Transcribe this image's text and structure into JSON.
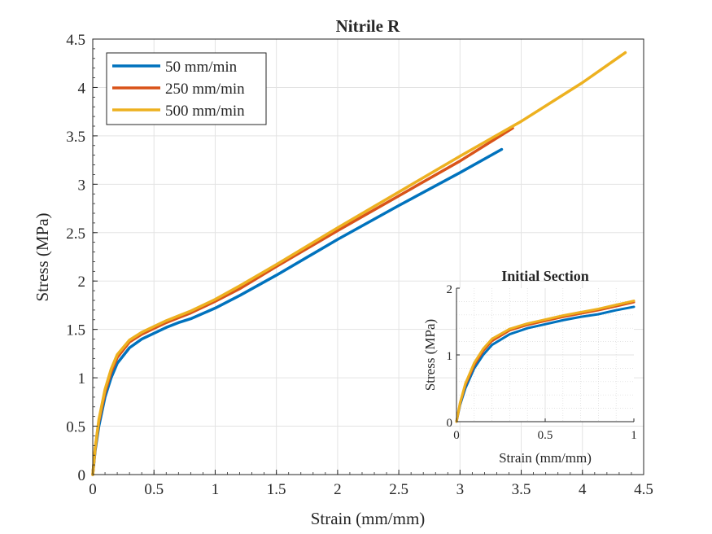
{
  "chart_data": [
    {
      "type": "line",
      "title": "Nitrile R",
      "xlabel": "Strain (mm/mm)",
      "ylabel": "Stress (MPa)",
      "xlim": [
        0,
        4.5
      ],
      "ylim": [
        0,
        4.5
      ],
      "xticks": [
        "0",
        "0.5",
        "1",
        "1.5",
        "2",
        "2.5",
        "3",
        "3.5",
        "4",
        "4.5"
      ],
      "yticks": [
        "0",
        "0.5",
        "1",
        "1.5",
        "2",
        "2.5",
        "3",
        "3.5",
        "4",
        "4.5"
      ],
      "grid": true,
      "minor_ticks": true,
      "legend_position": "top-left",
      "series": [
        {
          "name": "50 mm/min",
          "color": "#0072BD",
          "x": [
            0,
            0.02,
            0.05,
            0.1,
            0.15,
            0.2,
            0.3,
            0.4,
            0.5,
            0.6,
            0.7,
            0.8,
            1.0,
            1.2,
            1.5,
            2.0,
            2.5,
            3.0,
            3.34
          ],
          "y": [
            0,
            0.25,
            0.5,
            0.8,
            1.0,
            1.15,
            1.31,
            1.4,
            1.46,
            1.52,
            1.57,
            1.61,
            1.72,
            1.85,
            2.06,
            2.43,
            2.78,
            3.12,
            3.36
          ]
        },
        {
          "name": "250 mm/min",
          "color": "#D95319",
          "x": [
            0,
            0.02,
            0.05,
            0.1,
            0.15,
            0.2,
            0.3,
            0.4,
            0.5,
            0.6,
            0.7,
            0.8,
            1.0,
            1.2,
            1.5,
            2.0,
            2.5,
            3.0,
            3.43
          ],
          "y": [
            0,
            0.27,
            0.55,
            0.85,
            1.06,
            1.21,
            1.37,
            1.45,
            1.51,
            1.57,
            1.62,
            1.67,
            1.79,
            1.92,
            2.15,
            2.52,
            2.88,
            3.24,
            3.58
          ]
        },
        {
          "name": "500 mm/min",
          "color": "#EDB120",
          "x": [
            0,
            0.02,
            0.05,
            0.1,
            0.15,
            0.2,
            0.3,
            0.4,
            0.5,
            0.6,
            0.7,
            0.8,
            1.0,
            1.2,
            1.5,
            2.0,
            2.5,
            3.0,
            3.5,
            4.0,
            4.35
          ],
          "y": [
            0,
            0.28,
            0.57,
            0.88,
            1.09,
            1.24,
            1.39,
            1.47,
            1.53,
            1.59,
            1.64,
            1.69,
            1.81,
            1.95,
            2.17,
            2.55,
            2.92,
            3.29,
            3.65,
            4.05,
            4.36
          ]
        }
      ]
    },
    {
      "type": "line",
      "title": "Initial Section",
      "xlabel": "Strain (mm/mm)",
      "ylabel": "Stress (MPa)",
      "xlim": [
        0,
        1
      ],
      "ylim": [
        0,
        2
      ],
      "xticks": [
        "0",
        "0.5",
        "1"
      ],
      "yticks": [
        "0",
        "1",
        "2"
      ],
      "grid": true,
      "minor_grid": true,
      "legend_position": "none",
      "series": [
        {
          "color": "#0072BD",
          "x": [
            0,
            0.02,
            0.05,
            0.1,
            0.15,
            0.2,
            0.3,
            0.4,
            0.5,
            0.6,
            0.7,
            0.8,
            0.9,
            1.0
          ],
          "y": [
            0,
            0.25,
            0.5,
            0.8,
            1.0,
            1.15,
            1.31,
            1.4,
            1.46,
            1.52,
            1.57,
            1.61,
            1.67,
            1.72
          ]
        },
        {
          "color": "#D95319",
          "x": [
            0,
            0.02,
            0.05,
            0.1,
            0.15,
            0.2,
            0.3,
            0.4,
            0.5,
            0.6,
            0.7,
            0.8,
            0.9,
            1.0
          ],
          "y": [
            0,
            0.27,
            0.55,
            0.85,
            1.06,
            1.21,
            1.37,
            1.45,
            1.51,
            1.57,
            1.62,
            1.67,
            1.73,
            1.79
          ]
        },
        {
          "color": "#EDB120",
          "x": [
            0,
            0.02,
            0.05,
            0.1,
            0.15,
            0.2,
            0.3,
            0.4,
            0.5,
            0.6,
            0.7,
            0.8,
            0.9,
            1.0
          ],
          "y": [
            0,
            0.28,
            0.57,
            0.88,
            1.09,
            1.24,
            1.39,
            1.47,
            1.53,
            1.59,
            1.64,
            1.69,
            1.75,
            1.81
          ]
        }
      ]
    }
  ]
}
